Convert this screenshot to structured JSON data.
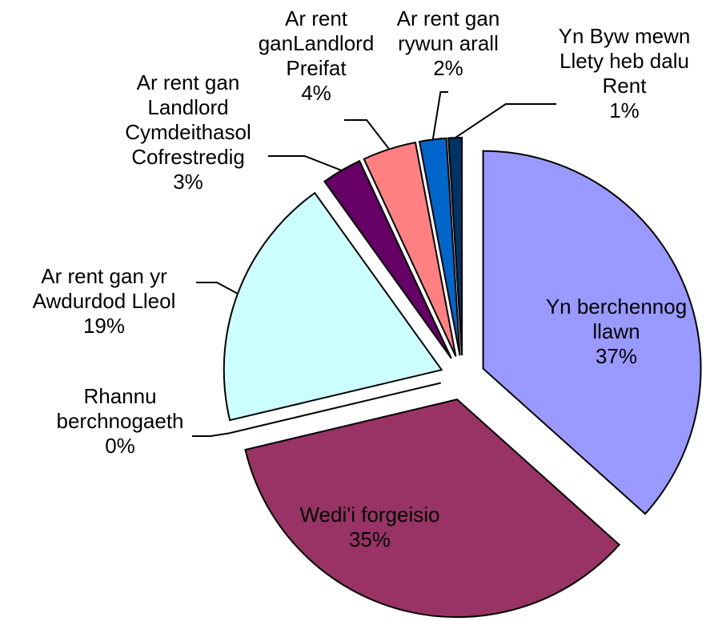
{
  "chart_data": {
    "type": "pie",
    "categories": [
      "Yn berchennog llawn",
      "Wedi'i forgeisio",
      "Rhannu berchnogaeth",
      "Ar rent gan yr Awdurdod Lleol",
      "Ar rent gan Landlord Cymdeithasol Cofrestredig",
      "Ar rent ganLandlord Preifat",
      "Ar rent gan rywun arall",
      "Yn Byw mewn Llety heb dalu Rent"
    ],
    "values": [
      37,
      35,
      0,
      19,
      3,
      4,
      2,
      1
    ],
    "value_labels": [
      "37%",
      "35%",
      "0%",
      "19%",
      "3%",
      "4%",
      "2%",
      "1%"
    ],
    "colors": [
      "#9999ff",
      "#993366",
      "#ffffcc",
      "#ccffff",
      "#660066",
      "#ff8080",
      "#0066cc",
      "#003366"
    ]
  }
}
